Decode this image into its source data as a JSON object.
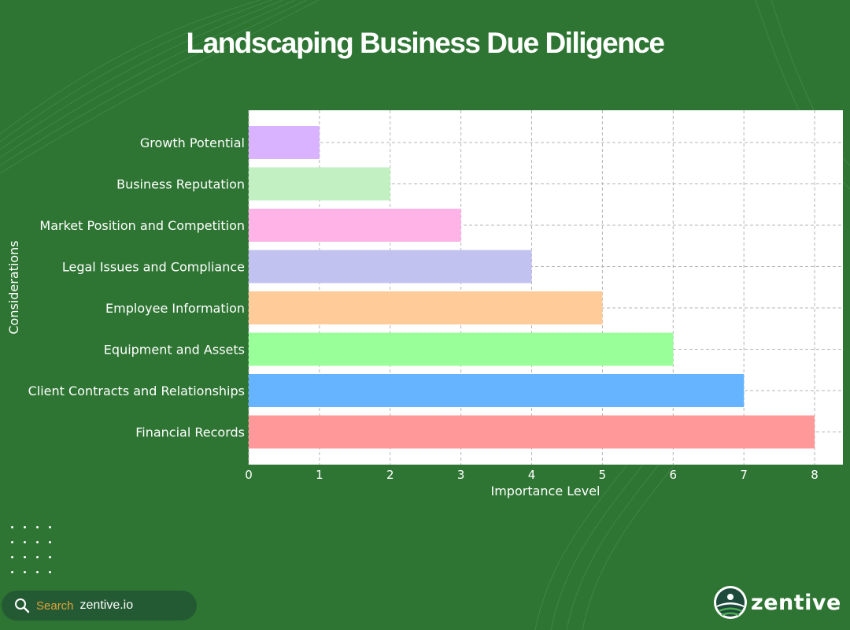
{
  "colors": {
    "background": "#2e7533",
    "bar_colors": [
      "#ff9999",
      "#66b3ff",
      "#99ff99",
      "#ffcc99",
      "#c2c2f0",
      "#ffb3e6",
      "#c2f0c2",
      "#d9b3ff"
    ]
  },
  "chart_data": {
    "type": "bar",
    "orientation": "horizontal",
    "title": "Landscaping Business Due Diligence",
    "xlabel": "Importance Level",
    "ylabel": "Considerations",
    "categories": [
      "Financial Records",
      "Client Contracts and Relationships",
      "Equipment and Assets",
      "Employee Information",
      "Legal Issues and Compliance",
      "Market Position and Competition",
      "Business Reputation",
      "Growth Potential"
    ],
    "values": [
      8,
      7,
      6,
      5,
      4,
      3,
      2,
      1
    ],
    "xlim": [
      0,
      8.4
    ],
    "xticks": [
      "0",
      "1",
      "2",
      "3",
      "4",
      "5",
      "6",
      "7",
      "8"
    ],
    "grid": true
  },
  "footer": {
    "search_label": "Search",
    "search_site": "zentive.io",
    "search_icon": "search-icon",
    "brand_name": "zentive",
    "brand_icon": "zentive-logo-icon"
  }
}
